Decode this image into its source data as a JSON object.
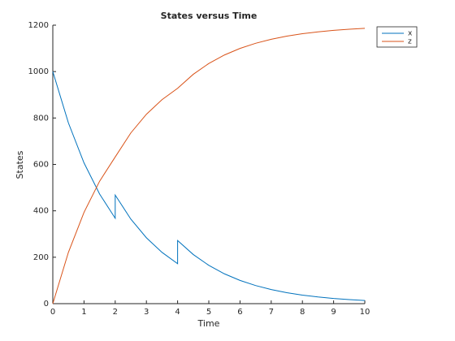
{
  "chart_data": {
    "type": "line",
    "title": "States versus Time",
    "x_label": "Time",
    "y_label": "States",
    "x": [
      0,
      0.5,
      1,
      1.5,
      2,
      2,
      2.5,
      3,
      3.5,
      4,
      4,
      4.5,
      5,
      5.5,
      6,
      6.5,
      7,
      7.5,
      8,
      8.5,
      9,
      9.5,
      10
    ],
    "series": [
      {
        "name": "x",
        "color": "#0072bd",
        "values": [
          1000,
          778.8,
          606.5,
          472.4,
          367.9,
          467.9,
          364.4,
          283.8,
          221.0,
          172.1,
          272.1,
          211.9,
          165.0,
          128.5,
          100.1,
          78.0,
          60.7,
          47.3,
          36.8,
          28.7,
          22.3,
          17.4,
          13.5
        ]
      },
      {
        "name": "z",
        "color": "#d95319",
        "values": [
          0,
          221.2,
          393.5,
          527.6,
          632.1,
          632.1,
          735.6,
          816.2,
          879.0,
          927.9,
          927.9,
          988.1,
          1035.0,
          1071.5,
          1099.9,
          1122.0,
          1139.3,
          1152.7,
          1163.2,
          1171.3,
          1177.7,
          1182.6,
          1186.5
        ]
      }
    ],
    "xlim": [
      0,
      10
    ],
    "xticks": [
      0,
      1,
      2,
      3,
      4,
      5,
      6,
      7,
      8,
      9,
      10
    ],
    "ylim": [
      0,
      1200
    ],
    "yticks": [
      0,
      200,
      400,
      600,
      800,
      1000,
      1200
    ],
    "grid": false,
    "legend": "outside-top-right"
  }
}
